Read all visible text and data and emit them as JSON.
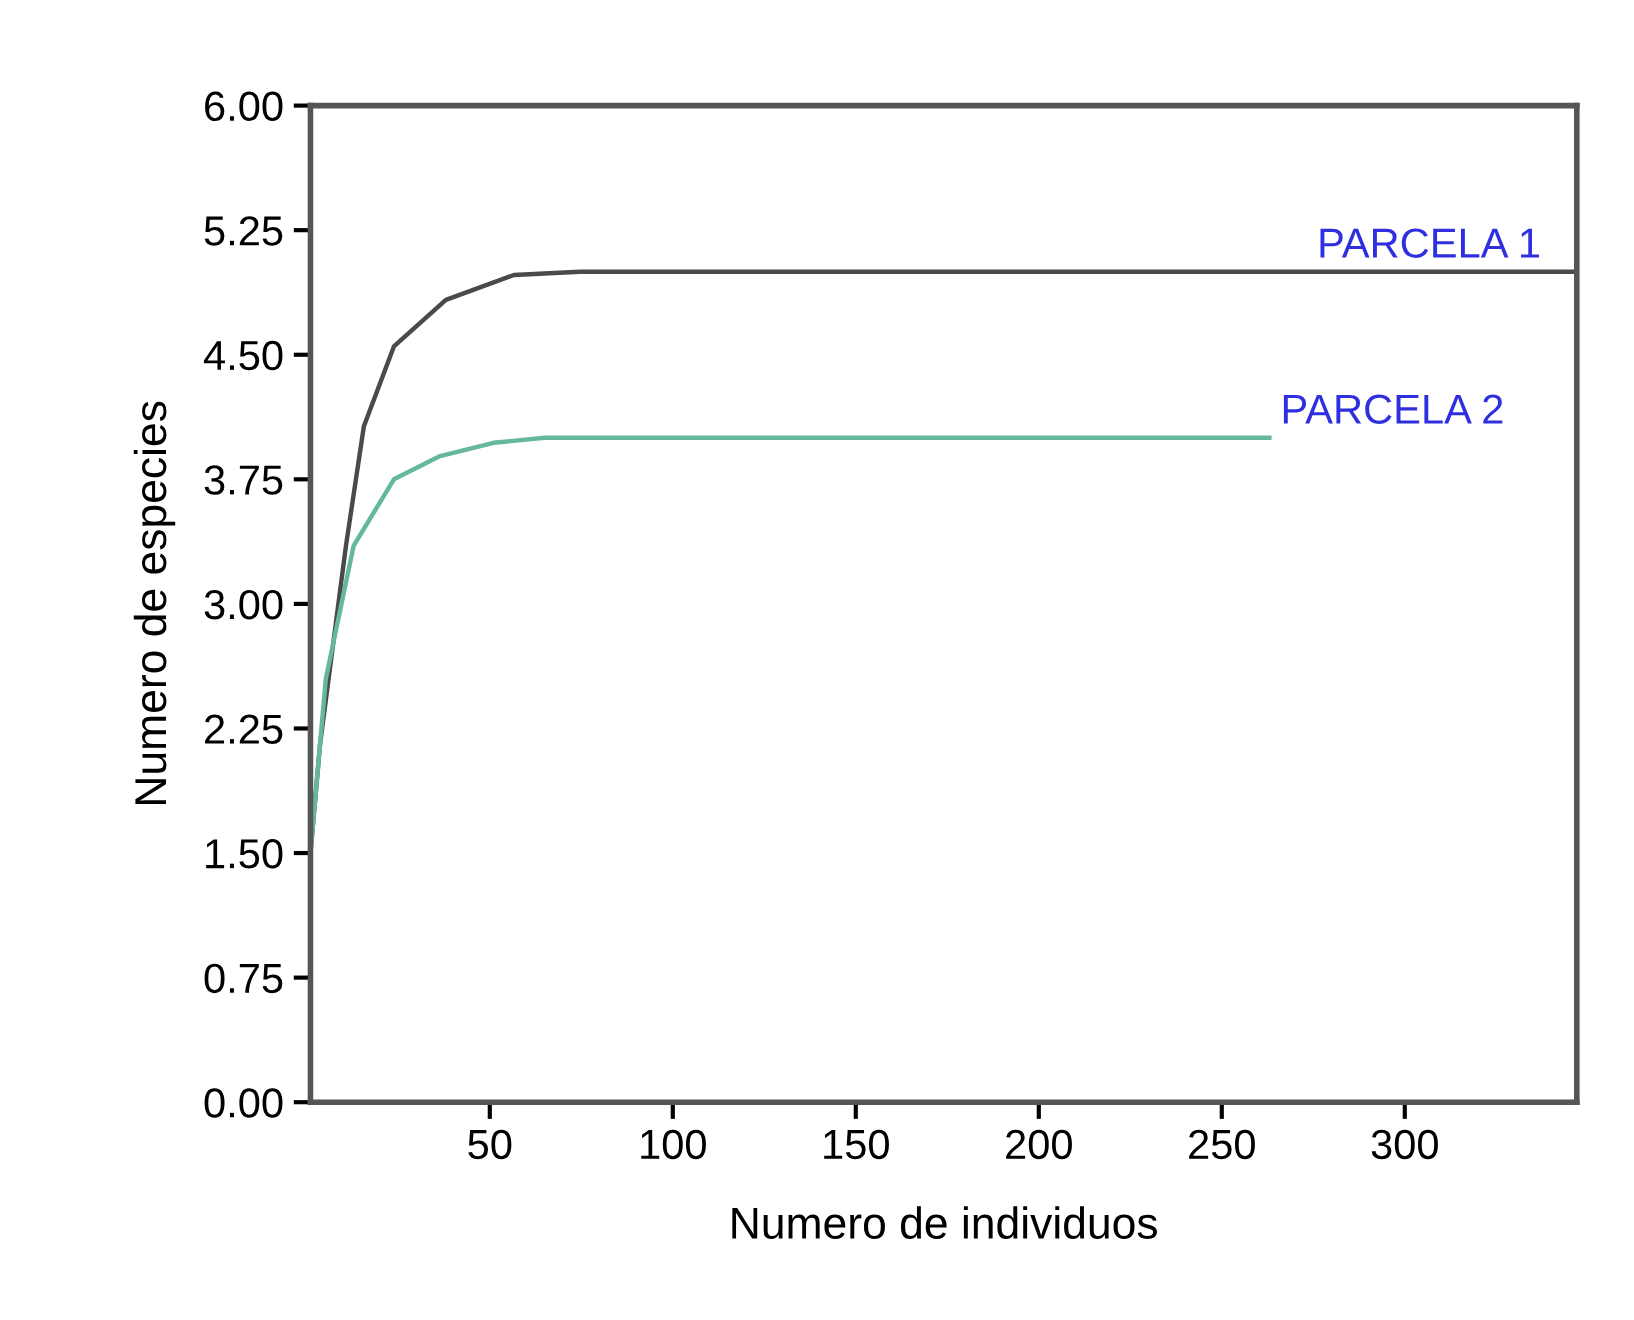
{
  "chart_data": {
    "type": "line",
    "xlabel": "Numero de individuos",
    "ylabel": "Numero de especies",
    "xlim": [
      1,
      347
    ],
    "xticks": [
      50,
      100,
      150,
      200,
      250,
      300
    ],
    "ylim": [
      0,
      6
    ],
    "yticks": [
      {
        "value": 0,
        "label": "0.00"
      },
      {
        "value": 0.75,
        "label": "0.75"
      },
      {
        "value": 1.5,
        "label": "1.50"
      },
      {
        "value": 2.25,
        "label": "2.25"
      },
      {
        "value": 3,
        "label": "3.00"
      },
      {
        "value": 3.75,
        "label": "3.75"
      },
      {
        "value": 4.5,
        "label": "4.50"
      },
      {
        "value": 5.25,
        "label": "5.25"
      },
      {
        "value": 6,
        "label": "6.00"
      }
    ],
    "grid": false,
    "legend": false,
    "marker": "none",
    "line_style": "solid",
    "series": [
      {
        "color": "#4a4a4a",
        "x": [
          1,
          3.6,
          10.7,
          15.6,
          23.8,
          38,
          56.6,
          74.6,
          347
        ],
        "values": [
          1.5,
          2.15,
          3.35,
          4.07,
          4.55,
          4.83,
          4.98,
          5.0,
          5.0
        ]
      },
      {
        "color": "#66b89a",
        "x": [
          1,
          5.2,
          12.8,
          23.8,
          36.4,
          51,
          65,
          263
        ],
        "values": [
          1.5,
          2.55,
          3.35,
          3.75,
          3.89,
          3.97,
          4.0,
          4.0
        ]
      }
    ],
    "annotations": [
      {
        "text": "PARCELA 1",
        "x": 273,
        "y": 5.0
      },
      {
        "text": "PARCELA 2",
        "x": 263,
        "y": 4.0
      }
    ]
  }
}
